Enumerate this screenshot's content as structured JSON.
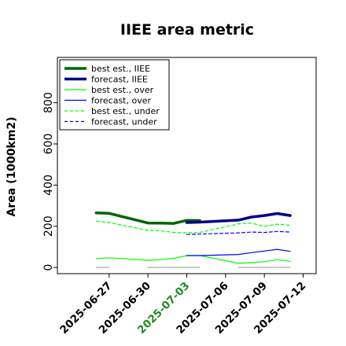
{
  "chart_data": {
    "type": "line",
    "title": "IIEE area metric",
    "xlabel": "",
    "ylabel": "Area (1000km2)",
    "ylim": [
      -30,
      1020
    ],
    "xlim": [
      "2025-06-23",
      "2025-07-13"
    ],
    "yticks": [
      0,
      200,
      400,
      600,
      800
    ],
    "xticks": [
      {
        "label": "2025-06-27",
        "color": "#000000"
      },
      {
        "label": "2025-06-30",
        "color": "#000000"
      },
      {
        "label": "2025-07-03",
        "color": "#228B22"
      },
      {
        "label": "2025-07-06",
        "color": "#000000"
      },
      {
        "label": "2025-07-09",
        "color": "#000000"
      },
      {
        "label": "2025-07-12",
        "color": "#000000"
      }
    ],
    "legend_position": "top-left",
    "grid": false,
    "series": [
      {
        "name": "best est., IIEE",
        "color": "#006400",
        "style": "solid",
        "weight": "thick",
        "points": [
          [
            "2025-06-26",
            265
          ],
          [
            "2025-06-27",
            263
          ],
          [
            "2025-06-30",
            216
          ],
          [
            "2025-07-01",
            215
          ],
          [
            "2025-07-02",
            214
          ],
          [
            "2025-07-03",
            229
          ],
          [
            "2025-07-04",
            228
          ]
        ]
      },
      {
        "name": "forecast, IIEE",
        "color": "#00008B",
        "style": "solid",
        "weight": "thick",
        "points": [
          [
            "2025-07-03",
            218
          ],
          [
            "2025-07-04",
            220
          ],
          [
            "2025-07-07",
            230
          ],
          [
            "2025-07-08",
            245
          ],
          [
            "2025-07-09",
            252
          ],
          [
            "2025-07-10",
            262
          ],
          [
            "2025-07-11",
            252
          ]
        ]
      },
      {
        "name": "best est., over",
        "color": "#00FF00",
        "style": "solid",
        "weight": "thin",
        "points": [
          [
            "2025-06-26",
            42
          ],
          [
            "2025-06-27",
            47
          ],
          [
            "2025-06-30",
            35
          ],
          [
            "2025-07-01",
            38
          ],
          [
            "2025-07-02",
            45
          ],
          [
            "2025-07-03",
            58
          ],
          [
            "2025-07-04",
            58
          ],
          [
            "2025-07-07",
            20
          ],
          [
            "2025-07-08",
            24
          ],
          [
            "2025-07-09",
            28
          ],
          [
            "2025-07-10",
            38
          ],
          [
            "2025-07-11",
            30
          ]
        ]
      },
      {
        "name": "forecast, over",
        "color": "#0000FF",
        "style": "solid",
        "weight": "thin",
        "points": [
          [
            "2025-07-03",
            58
          ],
          [
            "2025-07-04",
            58
          ],
          [
            "2025-07-07",
            63
          ],
          [
            "2025-07-08",
            72
          ],
          [
            "2025-07-09",
            80
          ],
          [
            "2025-07-10",
            88
          ],
          [
            "2025-07-11",
            78
          ]
        ]
      },
      {
        "name": "best est., under",
        "color": "#00FF00",
        "style": "dashed",
        "weight": "thin",
        "points": [
          [
            "2025-06-26",
            225
          ],
          [
            "2025-06-27",
            218
          ],
          [
            "2025-06-30",
            180
          ],
          [
            "2025-07-01",
            178
          ],
          [
            "2025-07-02",
            170
          ],
          [
            "2025-07-03",
            168
          ],
          [
            "2025-07-04",
            170
          ],
          [
            "2025-07-07",
            212
          ],
          [
            "2025-07-08",
            215
          ],
          [
            "2025-07-09",
            200
          ],
          [
            "2025-07-10",
            210
          ],
          [
            "2025-07-11",
            205
          ]
        ]
      },
      {
        "name": "forecast, under",
        "color": "#0000FF",
        "style": "dashed",
        "weight": "thin",
        "points": [
          [
            "2025-07-03",
            160
          ],
          [
            "2025-07-04",
            162
          ],
          [
            "2025-07-07",
            168
          ],
          [
            "2025-07-08",
            172
          ],
          [
            "2025-07-09",
            170
          ],
          [
            "2025-07-10",
            175
          ],
          [
            "2025-07-11",
            172
          ]
        ]
      },
      {
        "color": "#AAAAAA",
        "style": "solid",
        "weight": "thin",
        "points": [
          [
            "2025-06-26",
            0
          ],
          [
            "2025-06-27",
            0
          ]
        ]
      },
      {
        "color": "#AAAAAA",
        "style": "solid",
        "weight": "thin",
        "points": [
          [
            "2025-06-30",
            0
          ],
          [
            "2025-07-04",
            0
          ]
        ]
      },
      {
        "color": "#AAAAAA",
        "style": "solid",
        "weight": "thin",
        "points": [
          [
            "2025-07-07",
            0
          ],
          [
            "2025-07-11",
            0
          ]
        ]
      }
    ]
  }
}
